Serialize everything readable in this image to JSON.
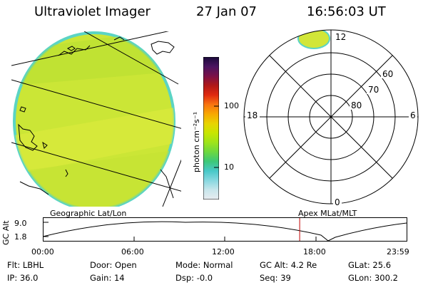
{
  "header": {
    "instrument": "Ultraviolet Imager",
    "date": "27 Jan 07",
    "time": "16:56:03 UT"
  },
  "colorbar": {
    "unit_label": "photon cm⁻²s⁻¹",
    "ticks": [
      "100",
      "10"
    ],
    "colors": [
      "#1a0a3a",
      "#4a1460",
      "#7a1048",
      "#b01818",
      "#e02a10",
      "#f87410",
      "#f8a800",
      "#e8d400",
      "#c8e600",
      "#9ee41a",
      "#6cd840",
      "#3cc878",
      "#48c8c8",
      "#88d8e0",
      "#c8e6ec",
      "#e8ecf0"
    ]
  },
  "polar_plot": {
    "latitude_labels": [
      "60",
      "70",
      "80"
    ],
    "mlt_labels": {
      "top": "12",
      "left": "18",
      "right": "6",
      "bottom": "0"
    }
  },
  "projection_labels": {
    "left": "Geographic Lat/Lon",
    "right": "Apex MLat/MLT"
  },
  "altitude_plot": {
    "axis_label": "GC Alt",
    "y_ticks": [
      "9.0",
      "1.8"
    ],
    "x_ticks": [
      "00:00",
      "06:00",
      "12:00",
      "18:00",
      "23:59"
    ],
    "marker_time": "16:56",
    "colors": {
      "curve": "#000000",
      "marker": "#c00000"
    }
  },
  "status": {
    "filter": {
      "label": "Flt:",
      "value": "LBHL"
    },
    "ip": {
      "label": "IP:",
      "value": "36.0"
    },
    "door": {
      "label": "Door:",
      "value": "Open"
    },
    "gain": {
      "label": "Gain:",
      "value": "14"
    },
    "mode": {
      "label": "Mode:",
      "value": "Normal"
    },
    "dsp": {
      "label": "Dsp:",
      "value": "-0.0"
    },
    "gc_alt": {
      "label": "GC Alt:",
      "value": "4.2 Re"
    },
    "seq": {
      "label": "Seq:",
      "value": "39"
    },
    "glat": {
      "label": "GLat:",
      "value": "25.6"
    },
    "glon": {
      "label": "GLon:",
      "value": "300.2"
    }
  }
}
